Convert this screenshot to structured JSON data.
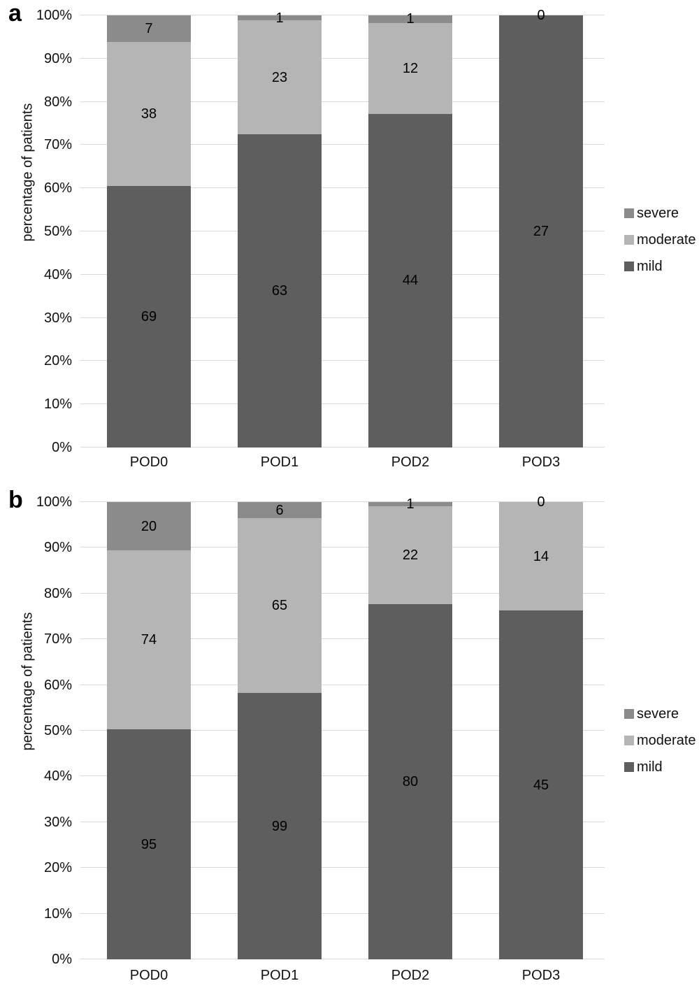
{
  "colors": {
    "mild": "#5e5e5e",
    "moderate": "#b5b5b5",
    "severe": "#8b8b8b",
    "gridline": "#d9d9d9",
    "background": "#ffffff",
    "text": "#111111"
  },
  "y_axis": {
    "title": "percentage of patients",
    "tick_labels": [
      "0%",
      "10%",
      "20%",
      "30%",
      "40%",
      "50%",
      "60%",
      "70%",
      "80%",
      "90%",
      "100%"
    ]
  },
  "legend": {
    "items": [
      {
        "key": "severe",
        "label": "severe"
      },
      {
        "key": "moderate",
        "label": "moderate"
      },
      {
        "key": "mild",
        "label": "mild"
      }
    ]
  },
  "chart_data": [
    {
      "panel": "a",
      "type": "bar",
      "stacking": "percent",
      "categories": [
        "POD0",
        "POD1",
        "POD2",
        "POD3"
      ],
      "series": [
        {
          "name": "mild",
          "values": [
            69,
            63,
            44,
            27
          ],
          "labels": [
            "69",
            "63",
            "44",
            "27"
          ]
        },
        {
          "name": "moderate",
          "values": [
            38,
            23,
            12,
            0
          ],
          "labels": [
            "38",
            "23",
            "12",
            null
          ]
        },
        {
          "name": "severe",
          "values": [
            7,
            1,
            1,
            0
          ],
          "labels": [
            "7",
            "1",
            "1",
            "0"
          ]
        }
      ],
      "xlabel": "",
      "ylabel": "percentage of patients",
      "ylim": [
        0,
        100
      ],
      "grid": true,
      "legend_position": "right"
    },
    {
      "panel": "b",
      "type": "bar",
      "stacking": "percent",
      "categories": [
        "POD0",
        "POD1",
        "POD2",
        "POD3"
      ],
      "series": [
        {
          "name": "mild",
          "values": [
            95,
            99,
            80,
            45
          ],
          "labels": [
            "95",
            "99",
            "80",
            "45"
          ]
        },
        {
          "name": "moderate",
          "values": [
            74,
            65,
            22,
            14
          ],
          "labels": [
            "74",
            "65",
            "22",
            "14"
          ]
        },
        {
          "name": "severe",
          "values": [
            20,
            6,
            1,
            0
          ],
          "labels": [
            "20",
            "6",
            "1",
            "0"
          ]
        }
      ],
      "xlabel": "",
      "ylabel": "percentage of patients",
      "ylim": [
        0,
        100
      ],
      "grid": true,
      "legend_position": "right"
    }
  ]
}
